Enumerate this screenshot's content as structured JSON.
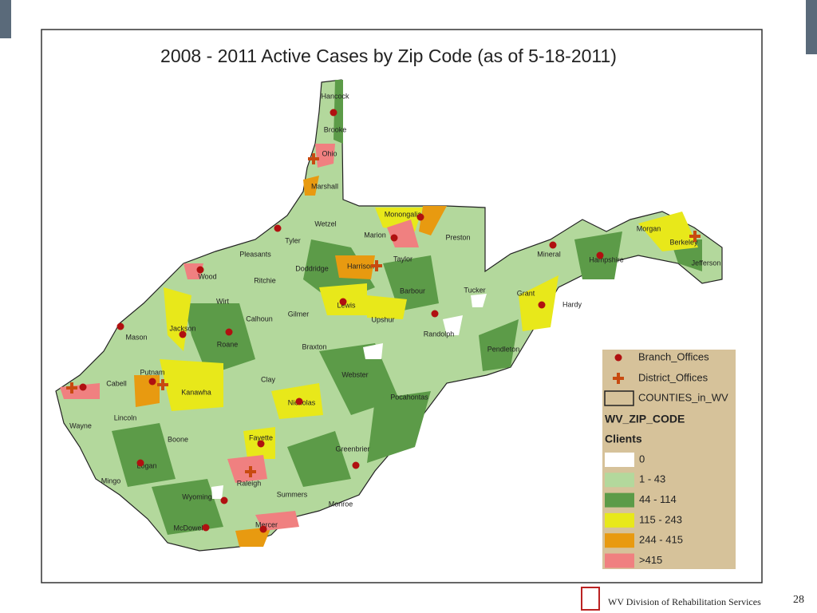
{
  "title": "2008 - 2011 Active Cases by Zip Code (as of 5-18-2011)",
  "counties": [
    "Hancock",
    "Brooke",
    "Ohio",
    "Marshall",
    "Wetzel",
    "Monongalia",
    "Marion",
    "Preston",
    "Tyler",
    "Pleasants",
    "Doddridge",
    "Harrison",
    "Taylor",
    "Wood",
    "Ritchie",
    "Barbour",
    "Tucker",
    "Mineral",
    "Hampshire",
    "Morgan",
    "Berkeley",
    "Jefferson",
    "Grant",
    "Hardy",
    "Wirt",
    "Lewis",
    "Gilmer",
    "Upshur",
    "Randolph",
    "Calhoun",
    "Jackson",
    "Mason",
    "Roane",
    "Braxton",
    "Pendleton",
    "Putnam",
    "Cabell",
    "Kanawha",
    "Clay",
    "Webster",
    "Lincoln",
    "Wayne",
    "Nicholas",
    "Pocahontas",
    "Boone",
    "Fayette",
    "Greenbrier",
    "Logan",
    "Mingo",
    "Raleigh",
    "Wyoming",
    "Summers",
    "Monroe",
    "McDowell",
    "Mercer"
  ],
  "legend": {
    "branch": "Branch_Offices",
    "district": "District_Offices",
    "counties": "COUNTIES_in_WV",
    "layer": "WV_ZIP_CODE",
    "field": "Clients",
    "classes": [
      {
        "label": "0",
        "color": "#ffffff"
      },
      {
        "label": "1 - 43",
        "color": "#b3d89c"
      },
      {
        "label": "44 - 114",
        "color": "#5c9b48"
      },
      {
        "label": "115 - 243",
        "color": "#e8e81a"
      },
      {
        "label": "244 - 415",
        "color": "#e89a10"
      },
      {
        "label": ">415",
        "color": "#f08080"
      }
    ]
  },
  "footer": {
    "org": "WV Division of Rehabilitation Services",
    "page": "28"
  }
}
